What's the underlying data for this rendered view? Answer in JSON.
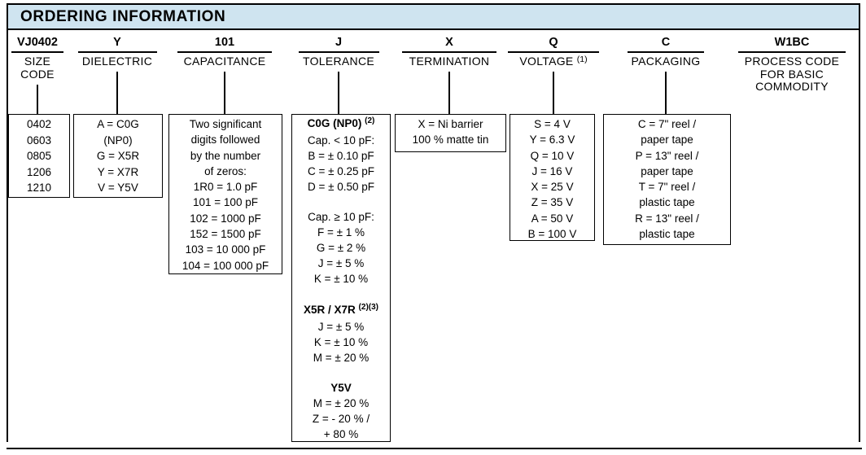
{
  "header": {
    "title": "ORDERING INFORMATION"
  },
  "colors": {
    "header_bg": "#cfe4f0",
    "border": "#000000",
    "text": "#000000"
  },
  "columns": [
    {
      "code": "VJ0402",
      "label_lines": [
        "SIZE",
        "CODE"
      ],
      "box_lines": [
        "0402",
        "0603",
        "0805",
        "1206",
        "1210"
      ]
    },
    {
      "code": "Y",
      "label_lines": [
        "DIELECTRIC"
      ],
      "box_lines": [
        "A = C0G",
        "(NP0)",
        "G = X5R",
        "Y = X7R",
        "V = Y5V"
      ]
    },
    {
      "code": "101",
      "label_lines": [
        "CAPACITANCE"
      ],
      "box_lines": [
        "Two significant",
        "digits followed",
        "by the number",
        "of zeros:",
        "1R0 = 1.0 pF",
        "101 = 100 pF",
        "102 = 1000 pF",
        "152 = 1500 pF",
        "103 = 10 000 pF",
        "104 = 100 000 pF"
      ]
    },
    {
      "code": "J",
      "label_lines": [
        "TOLERANCE"
      ],
      "box_lines": [
        {
          "text": "C0G (NP0)",
          "bold": true,
          "sup": "(2)"
        },
        "Cap. < 10 pF:",
        "B = ± 0.10 pF",
        "C = ± 0.25 pF",
        "D = ± 0.50 pF",
        "",
        "Cap. ≥ 10 pF:",
        "F = ± 1 %",
        "G = ± 2 %",
        "J = ± 5 %",
        "K = ± 10 %",
        "",
        {
          "text": "X5R / X7R",
          "bold": true,
          "sup": "(2)(3)"
        },
        "J = ± 5 %",
        "K = ± 10 %",
        "M = ± 20 %",
        "",
        {
          "text": "Y5V",
          "bold": true
        },
        "M = ± 20 %",
        "Z = - 20 % /",
        "+ 80 %"
      ]
    },
    {
      "code": "X",
      "label_lines": [
        "TERMINATION"
      ],
      "box_lines": [
        "X = Ni barrier",
        "100 % matte tin"
      ]
    },
    {
      "code": "Q",
      "label_lines": [
        {
          "text": "VOLTAGE",
          "sup": "(1)"
        }
      ],
      "box_lines": [
        "S = 4 V",
        "Y = 6.3 V",
        "Q = 10 V",
        "J = 16 V",
        "X = 25 V",
        "Z = 35 V",
        "A = 50 V",
        "B = 100 V"
      ]
    },
    {
      "code": "C",
      "label_lines": [
        "PACKAGING"
      ],
      "box_lines": [
        "C = 7\" reel /",
        "paper tape",
        "P = 13\" reel /",
        "paper tape",
        "T = 7\" reel /",
        "plastic tape",
        "R = 13\" reel /",
        "plastic tape"
      ]
    },
    {
      "code": "W1BC",
      "label_lines": [
        "PROCESS CODE",
        "FOR BASIC",
        "COMMODITY"
      ],
      "box_lines": []
    }
  ]
}
